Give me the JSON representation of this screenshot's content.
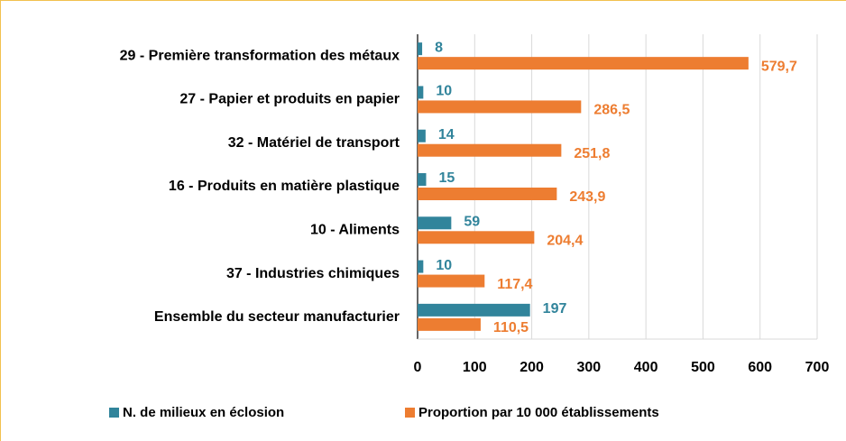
{
  "chart_data": {
    "type": "barh",
    "categories": [
      "29 - Première transformation des métaux",
      "27 - Papier et produits en papier",
      "32 - Matériel de transport",
      "16 - Produits en matière plastique",
      "10 - Aliments",
      "37 - Industries chimiques",
      "Ensemble du secteur manufacturier"
    ],
    "series": [
      {
        "name": "N. de milieux en éclosion",
        "color": "#31849b",
        "values": [
          8,
          10,
          14,
          15,
          59,
          10,
          197
        ]
      },
      {
        "name": "Proportion par 10 000 établissements",
        "color": "#ed7d31",
        "values": [
          579.7,
          286.5,
          251.8,
          243.9,
          204.4,
          117.4,
          110.5
        ],
        "value_labels": [
          "579,7",
          "286,5",
          "251,8",
          "243,9",
          "204,4",
          "117,4",
          "110,5"
        ]
      }
    ],
    "xlim": [
      0,
      700
    ],
    "xticks": [
      0,
      100,
      200,
      300,
      400,
      500,
      600,
      700
    ],
    "grid": true,
    "legend": "bottom"
  }
}
